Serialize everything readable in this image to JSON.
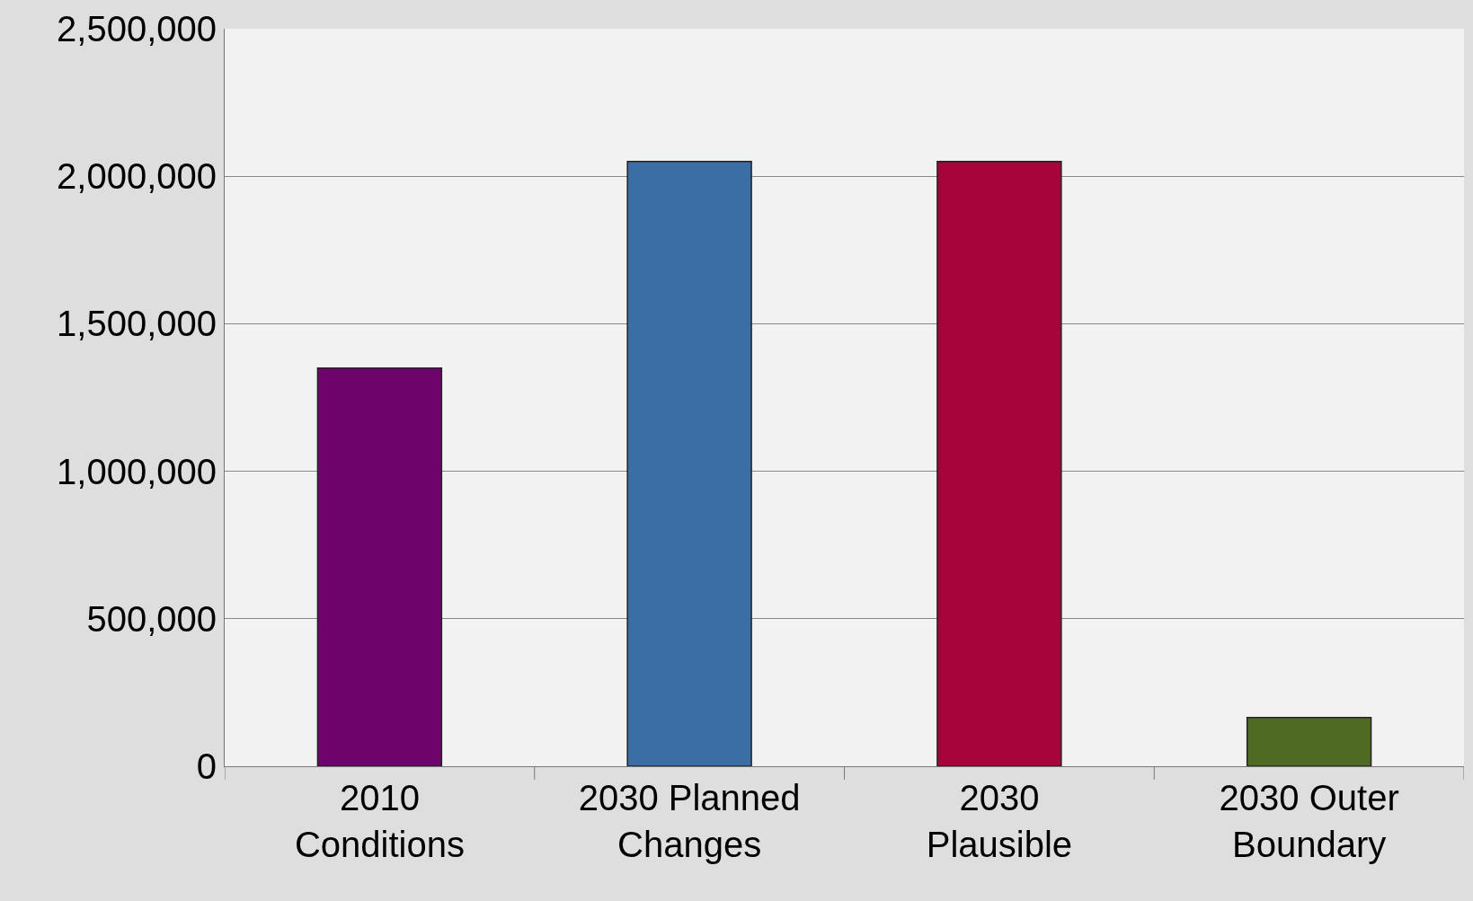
{
  "chart_data": {
    "type": "bar",
    "categories": [
      "2010 Conditions",
      "2030 Planned Changes",
      "2030 Plausible",
      "2030 Outer Boundary"
    ],
    "values": [
      1350000,
      2050000,
      2050000,
      165000
    ],
    "colors": [
      "#6e046b",
      "#3a6ea5",
      "#a5053b",
      "#4f6b22"
    ],
    "ylim": [
      0,
      2500000
    ],
    "yticks": [
      {
        "value": 0,
        "label": "0"
      },
      {
        "value": 500000,
        "label": "500,000"
      },
      {
        "value": 1000000,
        "label": "1,000,000"
      },
      {
        "value": 1500000,
        "label": "1,500,000"
      },
      {
        "value": 2000000,
        "label": "2,000,000"
      },
      {
        "value": 2500000,
        "label": "2,500,000"
      }
    ],
    "grid": "y"
  }
}
